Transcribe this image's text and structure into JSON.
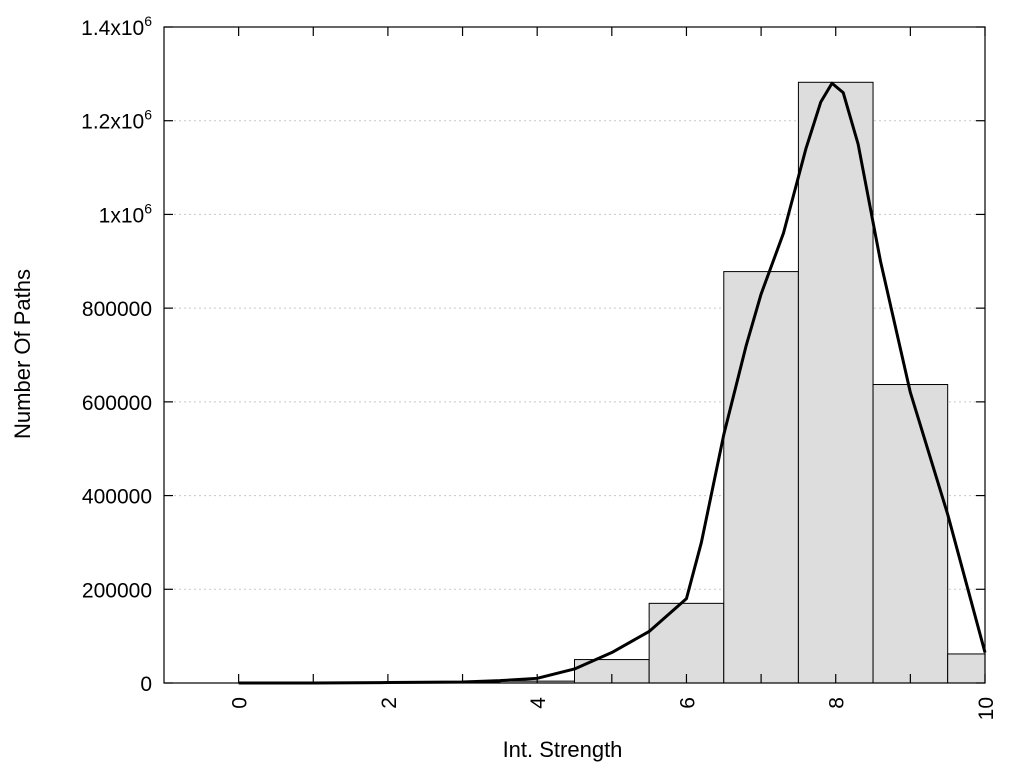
{
  "chart_data": {
    "type": "bar",
    "xlabel": "Int. Strength",
    "ylabel": "Number Of Paths",
    "xlim": [
      -1,
      10
    ],
    "ylim": [
      0,
      1400000
    ],
    "grid": "horizontal dotted",
    "bar_width": 1,
    "categories": [
      0,
      1,
      2,
      3,
      4,
      5,
      6,
      7,
      8,
      9,
      10
    ],
    "values": [
      0,
      0,
      0,
      1000,
      4000,
      50000,
      170000,
      878000,
      1282000,
      637000,
      62000
    ],
    "x_ticks": [
      {
        "value": 0,
        "label": "0"
      },
      {
        "value": 2,
        "label": "2"
      },
      {
        "value": 4,
        "label": "4"
      },
      {
        "value": 6,
        "label": "6"
      },
      {
        "value": 8,
        "label": "8"
      },
      {
        "value": 10,
        "label": "10"
      }
    ],
    "y_ticks": [
      {
        "value": 0,
        "label": "0"
      },
      {
        "value": 200000,
        "label": "200000"
      },
      {
        "value": 400000,
        "label": "400000"
      },
      {
        "value": 600000,
        "label": "600000"
      },
      {
        "value": 800000,
        "label": "800000"
      },
      {
        "value": 1000000,
        "label": "1x10",
        "exp": "6"
      },
      {
        "value": 1200000,
        "label": "1.2x10",
        "exp": "6"
      },
      {
        "value": 1400000,
        "label": "1.4x10",
        "exp": "6"
      }
    ],
    "fit_curve": {
      "x": [
        0,
        1,
        2,
        3,
        3.5,
        4,
        4.5,
        5,
        5.5,
        6,
        6.2,
        6.5,
        6.8,
        7,
        7.3,
        7.6,
        7.8,
        7.95,
        8.1,
        8.3,
        8.6,
        9,
        9.5,
        10
      ],
      "y": [
        0,
        0,
        1000,
        2000,
        5000,
        10000,
        30000,
        65000,
        110000,
        180000,
        300000,
        530000,
        720000,
        830000,
        960000,
        1140000,
        1240000,
        1280000,
        1260000,
        1150000,
        900000,
        620000,
        360000,
        65000
      ]
    },
    "colors": {
      "bar_fill": "#dddddd",
      "bar_stroke": "#000000",
      "curve": "#000000",
      "grid": "#c8c8c8"
    }
  }
}
